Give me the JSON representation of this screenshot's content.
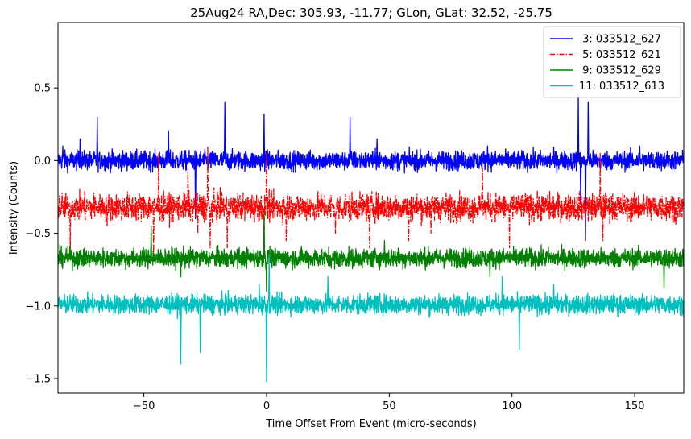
{
  "chart_data": {
    "type": "line",
    "title": "25Aug24 RA,Dec:  305.93, -11.77; GLon, GLat:   32.52, -25.75",
    "xlabel": "Time Offset From Event (micro-seconds)",
    "ylabel": "Intensity (Counts)",
    "xlim": [
      -85,
      170
    ],
    "ylim": [
      -1.6,
      0.95
    ],
    "xticks": [
      -50,
      0,
      50,
      100,
      150
    ],
    "xtick_labels": [
      "−50",
      "0",
      "50",
      "100",
      "150"
    ],
    "yticks": [
      -1.5,
      -1.0,
      -0.5,
      0.0,
      0.5
    ],
    "ytick_labels": [
      "−1.5",
      "−1.0",
      "−0.5",
      "0.0",
      "0.5"
    ],
    "grid": false,
    "legend_position": "top-right",
    "noise_note": "Dense noisy traces; baseline, noise amplitude and the visible spikes are listed per series.",
    "series": [
      {
        "name": " 3: 033512_627",
        "color": "#0000ff",
        "style": "solid",
        "baseline": 0.0,
        "noise": 0.035,
        "spikes": [
          {
            "x": -83,
            "y": 0.1
          },
          {
            "x": -76,
            "y": 0.15
          },
          {
            "x": -69,
            "y": 0.3
          },
          {
            "x": -40,
            "y": 0.2
          },
          {
            "x": -29,
            "y": -0.4
          },
          {
            "x": -17,
            "y": 0.4
          },
          {
            "x": -1,
            "y": 0.32
          },
          {
            "x": 34,
            "y": 0.3
          },
          {
            "x": 45,
            "y": 0.15
          },
          {
            "x": 90,
            "y": 0.1
          },
          {
            "x": 127,
            "y": 0.45
          },
          {
            "x": 128,
            "y": -0.3
          },
          {
            "x": 130,
            "y": -0.55
          },
          {
            "x": 131,
            "y": 0.4
          },
          {
            "x": 152,
            "y": 0.1
          }
        ]
      },
      {
        "name": " 5: 033512_621",
        "color": "#ff0000",
        "style": "dashdot",
        "baseline": -0.32,
        "noise": 0.05,
        "spikes": [
          {
            "x": -80,
            "y": -0.65
          },
          {
            "x": -65,
            "y": -0.45
          },
          {
            "x": -46,
            "y": -0.7
          },
          {
            "x": -44,
            "y": 0.05
          },
          {
            "x": -32,
            "y": -0.05
          },
          {
            "x": -28,
            "y": -0.5
          },
          {
            "x": -24,
            "y": 0.1
          },
          {
            "x": -23,
            "y": -0.6
          },
          {
            "x": -16,
            "y": -0.6
          },
          {
            "x": -1,
            "y": -0.65
          },
          {
            "x": 0,
            "y": 0.05
          },
          {
            "x": 8,
            "y": -0.55
          },
          {
            "x": 28,
            "y": -0.5
          },
          {
            "x": 42,
            "y": -0.6
          },
          {
            "x": 58,
            "y": -0.55
          },
          {
            "x": 67,
            "y": -0.5
          },
          {
            "x": 88,
            "y": -0.05
          },
          {
            "x": 99,
            "y": -0.6
          },
          {
            "x": 136,
            "y": 0.05
          },
          {
            "x": 137,
            "y": -0.55
          }
        ]
      },
      {
        "name": " 9: 033512_629",
        "color": "#008000",
        "style": "solid",
        "baseline": -0.67,
        "noise": 0.035,
        "spikes": [
          {
            "x": -47,
            "y": -0.45
          },
          {
            "x": -44,
            "y": -0.7
          },
          {
            "x": -35,
            "y": -0.8
          },
          {
            "x": -1,
            "y": -0.35
          },
          {
            "x": 0,
            "y": -0.9
          },
          {
            "x": 48,
            "y": -0.55
          },
          {
            "x": 91,
            "y": -0.8
          },
          {
            "x": 162,
            "y": -0.88
          }
        ]
      },
      {
        "name": "11: 033512_613",
        "color": "#00bfbf",
        "style": "solid",
        "baseline": -0.99,
        "noise": 0.035,
        "spikes": [
          {
            "x": -35,
            "y": -1.4
          },
          {
            "x": -27,
            "y": -1.32
          },
          {
            "x": -3,
            "y": -0.85
          },
          {
            "x": 0,
            "y": -1.52
          },
          {
            "x": 1,
            "y": -0.65
          },
          {
            "x": 25,
            "y": -0.8
          },
          {
            "x": 96,
            "y": -0.8
          },
          {
            "x": 103,
            "y": -1.3
          },
          {
            "x": 117,
            "y": -0.85
          }
        ]
      }
    ]
  }
}
